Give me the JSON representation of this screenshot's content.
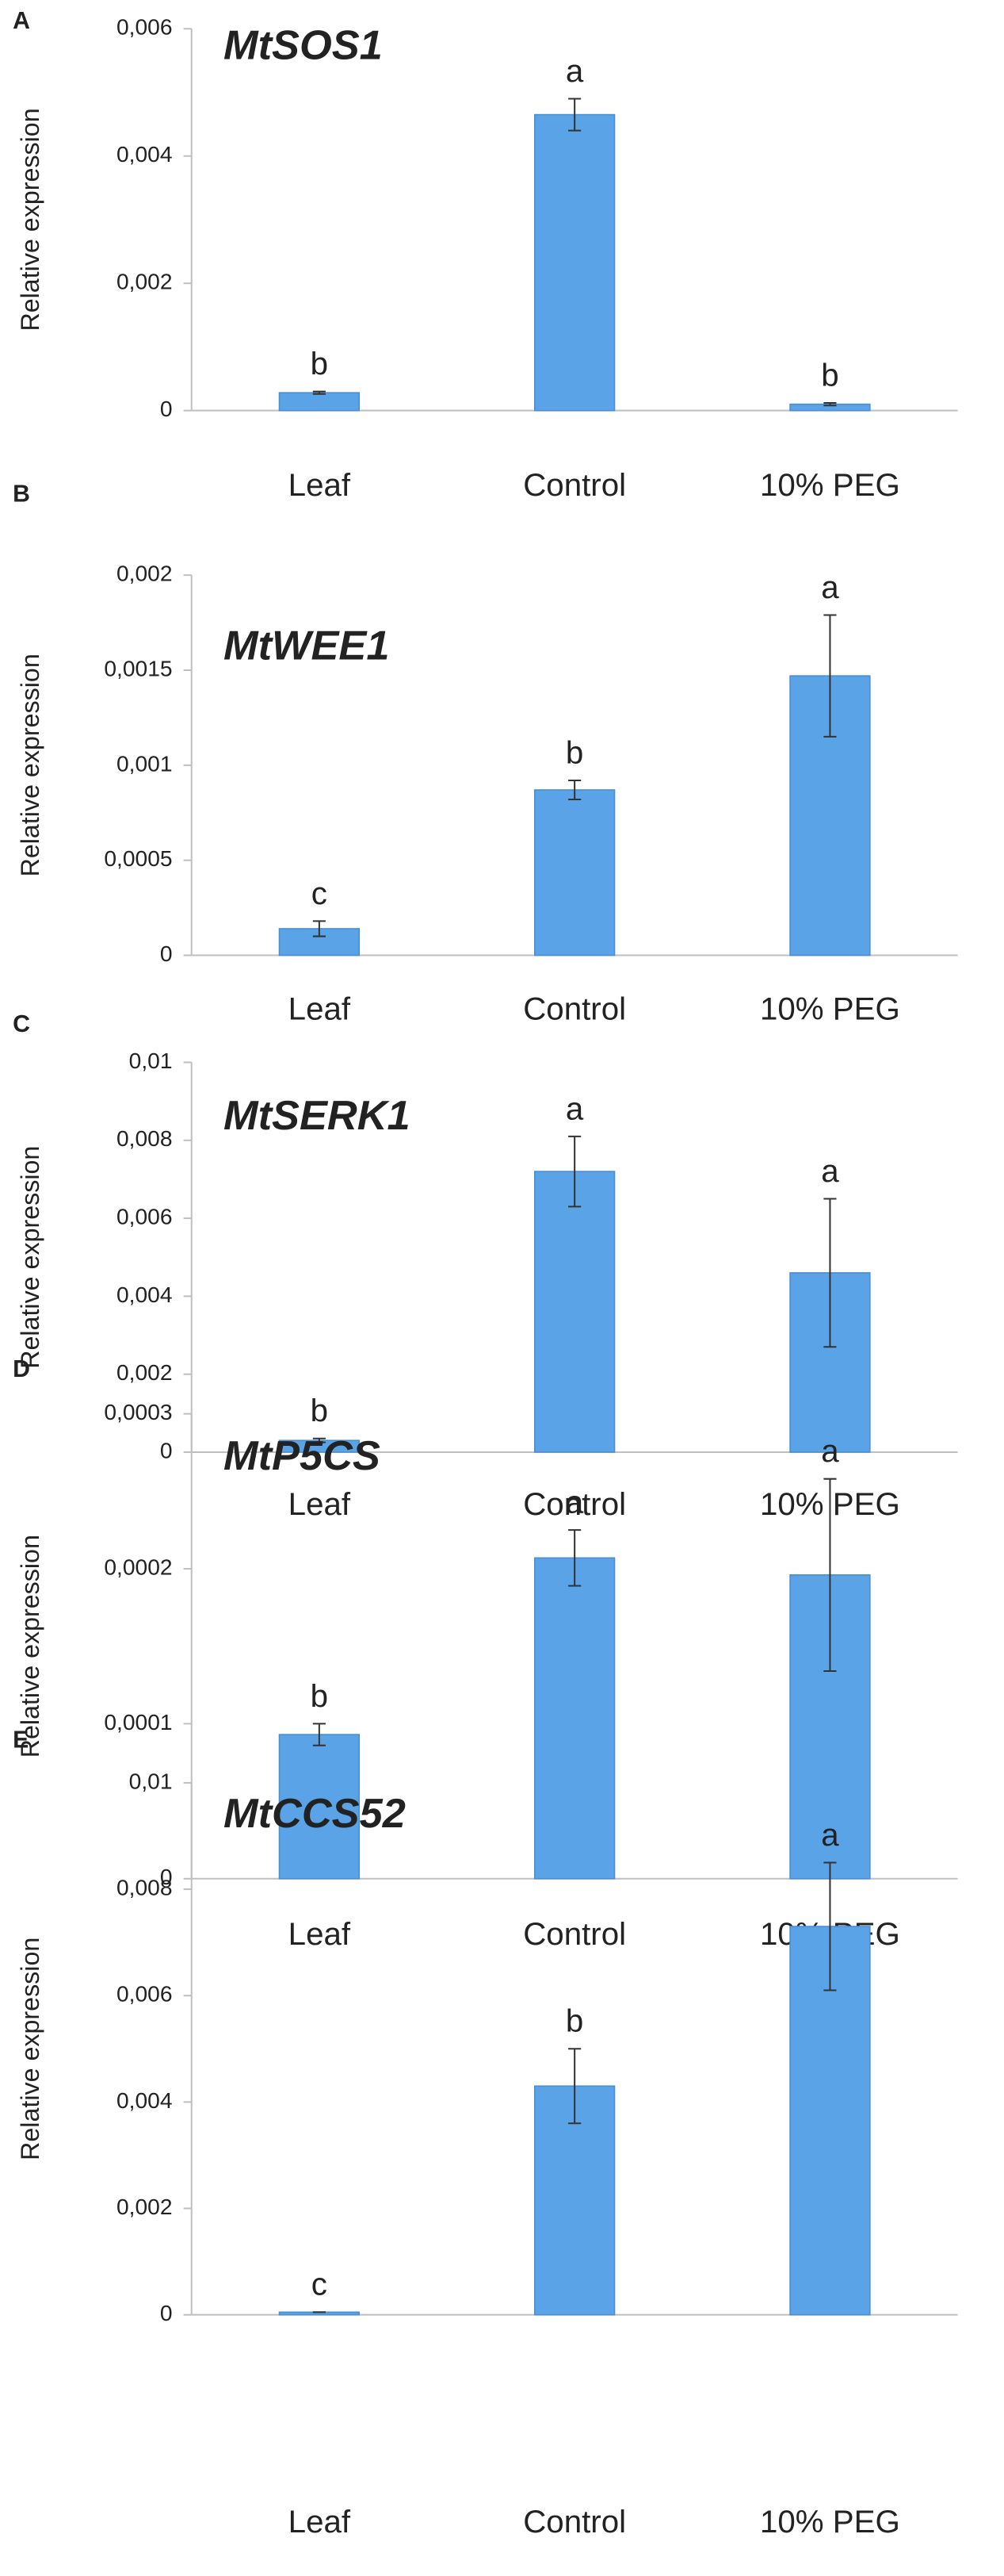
{
  "chart_data": [
    {
      "type": "bar",
      "panel": "A",
      "title": "MtSOS1",
      "y_label": "Relative expression",
      "categories": [
        "Leaf",
        "Control",
        "10% PEG"
      ],
      "values": [
        0.00028,
        0.00465,
        0.0001
      ],
      "errors": [
        2e-05,
        0.00025,
        2e-05
      ],
      "letters": [
        "b",
        "a",
        "b"
      ],
      "color": "#5ba3e7",
      "ylim": [
        0,
        0.006
      ],
      "yticks": [
        0,
        {
          "value": 0.002,
          "label": "0,002"
        },
        {
          "value": 0.004,
          "label": "0,004"
        },
        {
          "value": 0.006,
          "label": "0,006"
        }
      ]
    },
    {
      "type": "bar",
      "panel": "B",
      "title": "MtWEE1",
      "y_label": "Relative expression",
      "categories": [
        "Leaf",
        "Control",
        "10% PEG"
      ],
      "values": [
        0.00014,
        0.00087,
        0.00147
      ],
      "errors": [
        4e-05,
        5e-05,
        0.00032
      ],
      "letters": [
        "c",
        "b",
        "a"
      ],
      "color": "#5ba3e7",
      "ylim": [
        0,
        0.002
      ],
      "yticks": [
        0,
        {
          "value": 0.0005,
          "label": "0,0005"
        },
        {
          "value": 0.001,
          "label": "0,001"
        },
        {
          "value": 0.0015,
          "label": "0,0015"
        },
        {
          "value": 0.002,
          "label": "0,002"
        }
      ]
    },
    {
      "type": "bar",
      "panel": "C",
      "title": "MtSERK1",
      "y_label": "Relative expression",
      "categories": [
        "Leaf",
        "Control",
        "10% PEG"
      ],
      "values": [
        0.0003,
        0.0072,
        0.0046
      ],
      "errors": [
        5e-05,
        0.0009,
        0.0019
      ],
      "letters": [
        "b",
        "a",
        "a"
      ],
      "color": "#5ba3e7",
      "ylim": [
        0,
        0.01
      ],
      "yticks": [
        0,
        {
          "value": 0.002,
          "label": "0,002"
        },
        {
          "value": 0.004,
          "label": "0,004"
        },
        {
          "value": 0.006,
          "label": "0,006"
        },
        {
          "value": 0.008,
          "label": "0,008"
        },
        {
          "value": 0.01,
          "label": "0,01"
        }
      ]
    },
    {
      "type": "bar",
      "panel": "D",
      "title": "MtP5CS",
      "y_label": "Relative expression",
      "categories": [
        "Leaf",
        "Control",
        "10% PEG"
      ],
      "values": [
        9.3e-05,
        0.000207,
        0.000196
      ],
      "errors": [
        7e-06,
        1.8e-05,
        6.2e-05
      ],
      "letters": [
        "b",
        "a",
        "a"
      ],
      "color": "#5ba3e7",
      "ylim": [
        0,
        0.0003
      ],
      "yticks": [
        0,
        {
          "value": 0.0001,
          "label": "0,0001"
        },
        {
          "value": 0.0002,
          "label": "0,0002"
        },
        {
          "value": 0.0003,
          "label": "0,0003"
        }
      ]
    },
    {
      "type": "bar",
      "panel": "E",
      "title": "MtCCS52",
      "y_label": "Relative expression",
      "categories": [
        "Leaf",
        "Control",
        "10% PEG"
      ],
      "values": [
        5e-05,
        0.0043,
        0.0073
      ],
      "errors": [
        0,
        0.0007,
        0.0012
      ],
      "letters": [
        "c",
        "b",
        "a"
      ],
      "color": "#5ba3e7",
      "ylim": [
        0,
        0.01
      ],
      "yticks": [
        0,
        {
          "value": 0.002,
          "label": "0,002"
        },
        {
          "value": 0.004,
          "label": "0,004"
        },
        {
          "value": 0.006,
          "label": "0,006"
        },
        {
          "value": 0.008,
          "label": "0,008"
        },
        {
          "value": 0.01,
          "label": "0,01"
        }
      ]
    }
  ]
}
